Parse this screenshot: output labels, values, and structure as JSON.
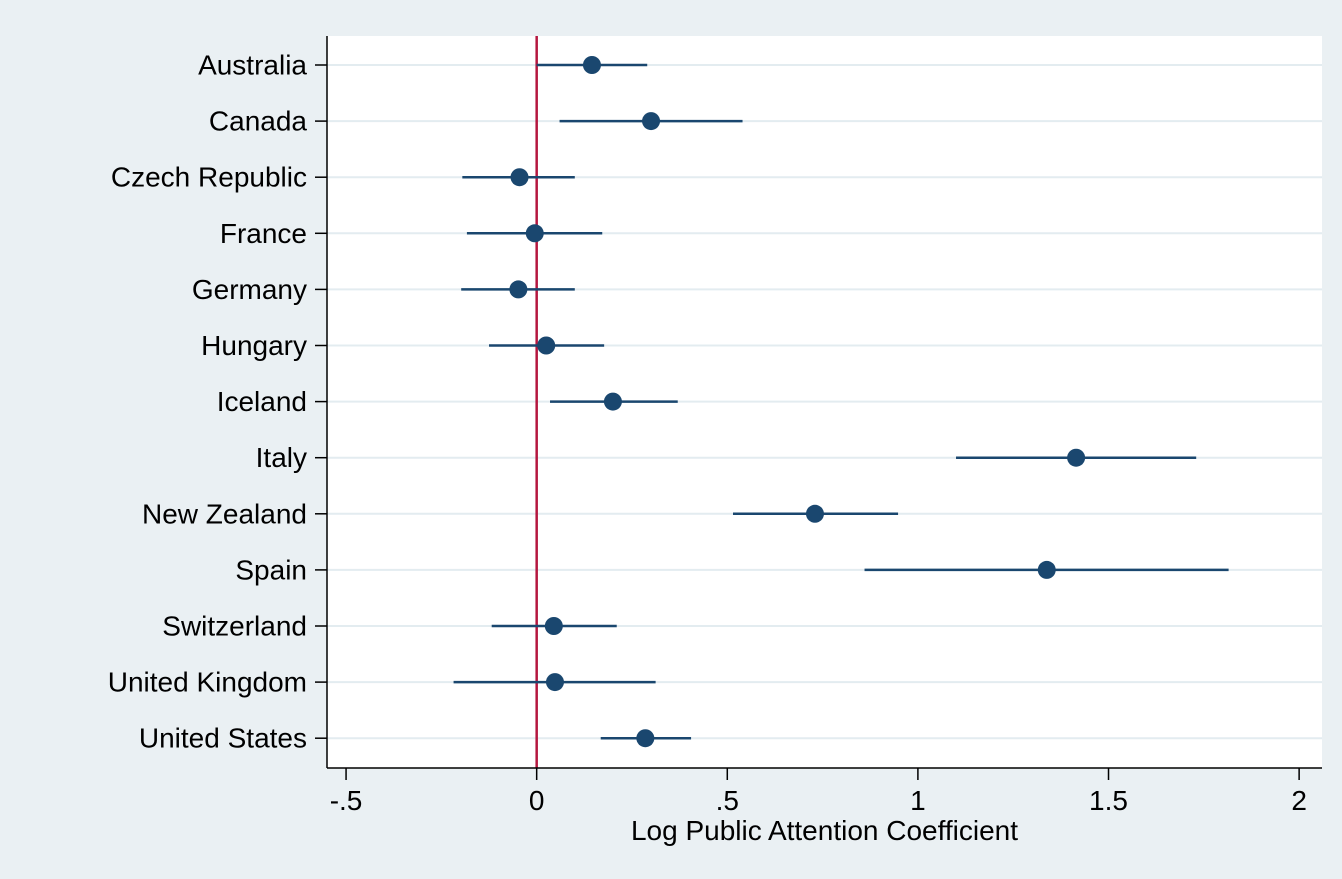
{
  "chart_data": {
    "type": "scatter",
    "subtype": "coefficient-plot",
    "title": "",
    "xlabel": "Log Public Attention Coefficient",
    "ylabel": "",
    "xlim": [
      -0.55,
      2.06
    ],
    "x_ticks": [
      -0.5,
      0,
      0.5,
      1,
      1.5,
      2
    ],
    "x_tick_labels": [
      "-.5",
      "0",
      ".5",
      "1",
      "1.5",
      "2"
    ],
    "reference_line": {
      "x": 0,
      "color": "#b5173f"
    },
    "grid": "horizontal",
    "categories": [
      "Australia",
      "Canada",
      "Czech Republic",
      "France",
      "Germany",
      "Hungary",
      "Iceland",
      "Italy",
      "New Zealand",
      "Spain",
      "Switzerland",
      "United Kingdom",
      "United States"
    ],
    "series": [
      {
        "estimate": [
          0.145,
          0.3,
          -0.045,
          -0.005,
          -0.048,
          0.025,
          0.2,
          1.415,
          0.73,
          1.338,
          0.045,
          0.048,
          0.285
        ],
        "ci_low": [
          0.0,
          0.06,
          -0.195,
          -0.183,
          -0.198,
          -0.125,
          0.035,
          1.1,
          0.515,
          0.86,
          -0.118,
          -0.218,
          0.168
        ],
        "ci_high": [
          0.29,
          0.54,
          0.1,
          0.172,
          0.1,
          0.177,
          0.37,
          1.73,
          0.948,
          1.815,
          0.21,
          0.312,
          0.405
        ]
      }
    ],
    "colors": {
      "point": "#1a476f",
      "line": "#1a476f",
      "grid": "#e3ecf0",
      "plot_background": "#ffffff",
      "page_background": "#eaf0f3",
      "reference": "#b5173f"
    }
  }
}
